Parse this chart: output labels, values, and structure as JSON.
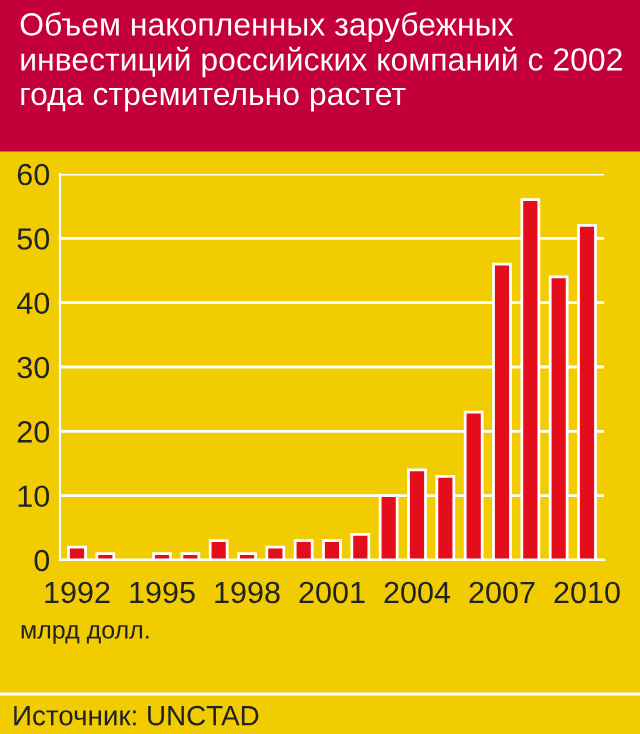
{
  "chart_data": {
    "type": "bar",
    "title": "Объем накопленных зарубежных инвестиций российских компаний с 2002 года стремительно растет",
    "ylabel": "млрд долл.",
    "annotations": [
      "Источник: UNCTAD"
    ],
    "categories": [
      "1992",
      null,
      null,
      "1995",
      null,
      null,
      "1998",
      null,
      null,
      "2001",
      null,
      null,
      "2004",
      null,
      null,
      "2007",
      null,
      null,
      "2010"
    ],
    "values": [
      2,
      1,
      null,
      1,
      1,
      3,
      1,
      2,
      3,
      3,
      4,
      10,
      14,
      13,
      23,
      46,
      56,
      44,
      52
    ],
    "color": "#e30d1b",
    "ylim": [
      0,
      60
    ],
    "yticks": [
      0,
      10,
      20,
      30,
      40,
      50,
      60
    ],
    "grid": "y",
    "legend": false
  }
}
